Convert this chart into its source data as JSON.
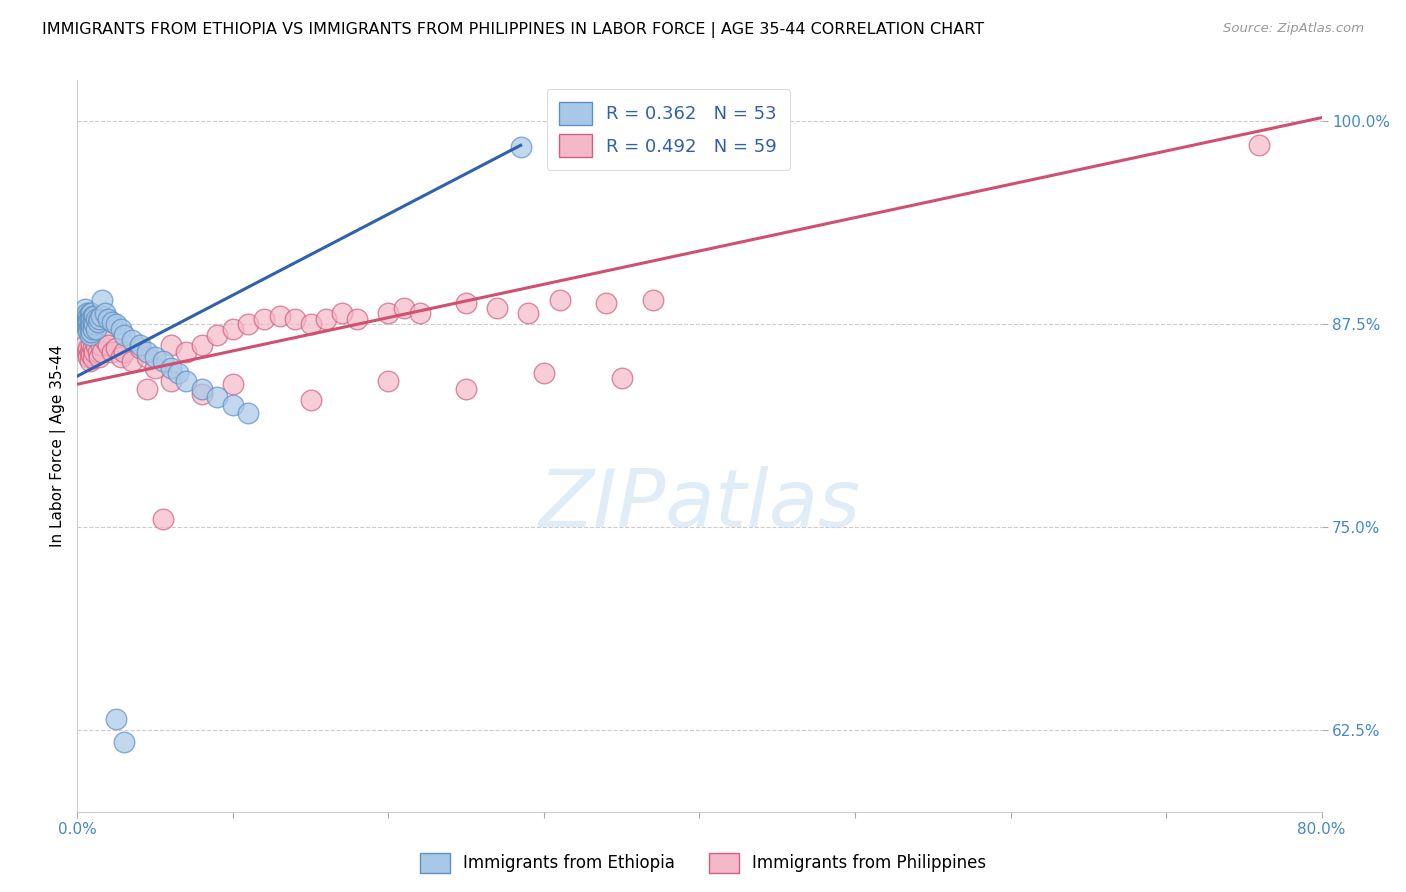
{
  "title": "IMMIGRANTS FROM ETHIOPIA VS IMMIGRANTS FROM PHILIPPINES IN LABOR FORCE | AGE 35-44 CORRELATION CHART",
  "source": "Source: ZipAtlas.com",
  "ylabel": "In Labor Force | Age 35-44",
  "xlim": [
    0.0,
    0.8
  ],
  "ylim": [
    0.575,
    1.025
  ],
  "yticks": [
    0.625,
    0.75,
    0.875,
    1.0
  ],
  "ytick_labels": [
    "62.5%",
    "75.0%",
    "87.5%",
    "100.0%"
  ],
  "xticks": [
    0.0,
    0.1,
    0.2,
    0.3,
    0.4,
    0.5,
    0.6,
    0.7,
    0.8
  ],
  "xtick_labels": [
    "0.0%",
    "",
    "",
    "",
    "",
    "",
    "",
    "",
    "80.0%"
  ],
  "ethiopia_color": "#A8C8E8",
  "philippines_color": "#F4B8C8",
  "ethiopia_edge": "#6090C0",
  "philippines_edge": "#D06080",
  "trendline_ethiopia": "#3060B0",
  "trendline_philippines": "#D05070",
  "R_ethiopia": 0.362,
  "N_ethiopia": 53,
  "R_philippines": 0.492,
  "N_philippines": 59,
  "legend_color": "#3060B0",
  "watermark_text": "ZIPatlas",
  "eth_trend_x0": 0.0,
  "eth_trend_y0": 0.843,
  "eth_trend_x1": 0.285,
  "eth_trend_y1": 0.985,
  "phi_trend_x0": 0.0,
  "phi_trend_y0": 0.838,
  "phi_trend_x1": 0.8,
  "phi_trend_y1": 1.002,
  "ethiopia_x": [
    0.004,
    0.005,
    0.005,
    0.005,
    0.006,
    0.006,
    0.006,
    0.006,
    0.007,
    0.007,
    0.007,
    0.007,
    0.008,
    0.008,
    0.008,
    0.008,
    0.008,
    0.009,
    0.009,
    0.009,
    0.009,
    0.01,
    0.01,
    0.01,
    0.011,
    0.011,
    0.012,
    0.012,
    0.013,
    0.014,
    0.015,
    0.016,
    0.018,
    0.02,
    0.022,
    0.025,
    0.028,
    0.03,
    0.035,
    0.04,
    0.045,
    0.05,
    0.055,
    0.06,
    0.065,
    0.07,
    0.08,
    0.09,
    0.1,
    0.11,
    0.025,
    0.03,
    0.285
  ],
  "ethiopia_y": [
    0.88,
    0.878,
    0.875,
    0.884,
    0.878,
    0.882,
    0.876,
    0.874,
    0.88,
    0.876,
    0.872,
    0.87,
    0.882,
    0.878,
    0.875,
    0.872,
    0.868,
    0.882,
    0.878,
    0.874,
    0.87,
    0.88,
    0.876,
    0.872,
    0.88,
    0.875,
    0.878,
    0.872,
    0.876,
    0.878,
    0.88,
    0.89,
    0.882,
    0.878,
    0.876,
    0.875,
    0.872,
    0.868,
    0.865,
    0.862,
    0.858,
    0.855,
    0.852,
    0.848,
    0.845,
    0.84,
    0.835,
    0.83,
    0.825,
    0.82,
    0.632,
    0.618,
    0.984
  ],
  "philippines_x": [
    0.005,
    0.006,
    0.007,
    0.007,
    0.008,
    0.008,
    0.009,
    0.009,
    0.01,
    0.01,
    0.011,
    0.012,
    0.013,
    0.014,
    0.015,
    0.016,
    0.018,
    0.02,
    0.022,
    0.025,
    0.028,
    0.03,
    0.035,
    0.04,
    0.045,
    0.05,
    0.06,
    0.07,
    0.08,
    0.09,
    0.1,
    0.11,
    0.12,
    0.13,
    0.14,
    0.15,
    0.16,
    0.17,
    0.18,
    0.2,
    0.21,
    0.22,
    0.25,
    0.27,
    0.29,
    0.31,
    0.34,
    0.37,
    0.045,
    0.06,
    0.08,
    0.1,
    0.15,
    0.2,
    0.25,
    0.3,
    0.35,
    0.055,
    0.76
  ],
  "philippines_y": [
    0.862,
    0.858,
    0.86,
    0.855,
    0.858,
    0.852,
    0.862,
    0.856,
    0.86,
    0.854,
    0.858,
    0.862,
    0.858,
    0.855,
    0.862,
    0.858,
    0.865,
    0.862,
    0.858,
    0.86,
    0.855,
    0.858,
    0.852,
    0.86,
    0.855,
    0.848,
    0.862,
    0.858,
    0.862,
    0.868,
    0.872,
    0.875,
    0.878,
    0.88,
    0.878,
    0.875,
    0.878,
    0.882,
    0.878,
    0.882,
    0.885,
    0.882,
    0.888,
    0.885,
    0.882,
    0.89,
    0.888,
    0.89,
    0.835,
    0.84,
    0.832,
    0.838,
    0.828,
    0.84,
    0.835,
    0.845,
    0.842,
    0.755,
    0.985
  ],
  "title_fontsize": 11.5,
  "tick_fontsize": 11,
  "ylabel_fontsize": 11,
  "legend_fontsize": 13
}
